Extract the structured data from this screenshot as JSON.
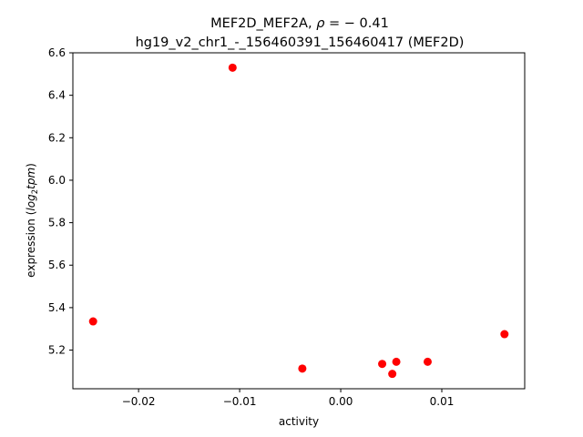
{
  "chart_data": {
    "type": "scatter",
    "title_line1_prefix": "MEF2D_MEF2A, ",
    "title_line1_rho": "ρ",
    "title_line1_suffix": " = − 0.41",
    "title_line2": "hg19_v2_chr1_-_156460391_156460417 (MEF2D)",
    "xlabel": "activity",
    "ylabel_prefix": "expression (",
    "ylabel_log": "log",
    "ylabel_sub": "2",
    "ylabel_tpm": "tpm",
    "ylabel_suffix": ")",
    "xlim": [
      -0.0265,
      0.0182
    ],
    "ylim": [
      5.018,
      6.6
    ],
    "xticks": [
      -0.02,
      -0.01,
      0.0,
      0.01
    ],
    "xtick_labels": [
      "−0.02",
      "−0.01",
      "0.00",
      "0.01"
    ],
    "yticks": [
      5.2,
      5.4,
      5.6,
      5.8,
      6.0,
      6.2,
      6.4,
      6.6
    ],
    "ytick_labels": [
      "5.2",
      "5.4",
      "5.6",
      "5.8",
      "6.0",
      "6.2",
      "6.4",
      "6.6"
    ],
    "point_color": "#ff0000",
    "points": [
      {
        "x": -0.0245,
        "y": 5.335
      },
      {
        "x": -0.0107,
        "y": 6.53
      },
      {
        "x": -0.0038,
        "y": 5.113
      },
      {
        "x": 0.0041,
        "y": 5.135
      },
      {
        "x": 0.0051,
        "y": 5.088
      },
      {
        "x": 0.0055,
        "y": 5.145
      },
      {
        "x": 0.0086,
        "y": 5.145
      },
      {
        "x": 0.0162,
        "y": 5.275
      }
    ]
  }
}
